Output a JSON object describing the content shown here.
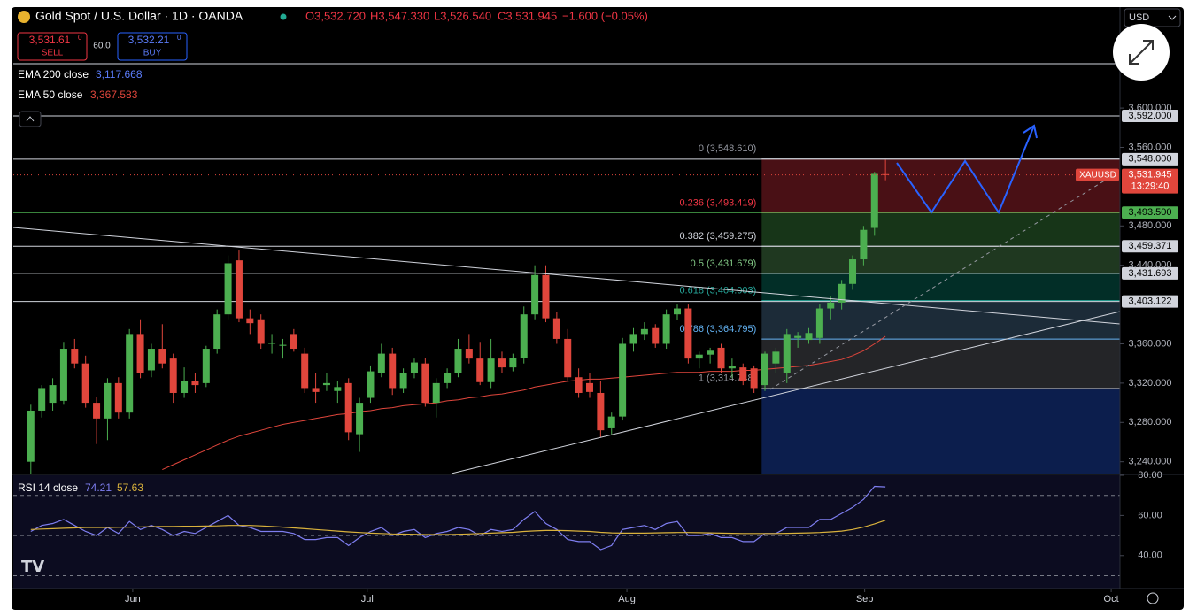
{
  "chart_data": {
    "type": "candlestick",
    "title": "Gold Spot / U.S. Dollar · 1D · OANDA",
    "header": {
      "open": "O3,532.720",
      "high": "H3,547.330",
      "low": "L3,526.540",
      "close": "C3,531.945",
      "change": "−1.600 (−0.05%)"
    },
    "trade": {
      "sell_price": "3,531.61",
      "sell_sup": "0",
      "sell": "SELL",
      "spread": "60.0",
      "buy_price": "3,532.21",
      "buy_sup": "0",
      "buy": "BUY"
    },
    "currency": "USD",
    "up_color": "#4caf50",
    "down_color": "#e0463c",
    "xlim": [
      -1.6,
      99.4
    ],
    "xticks": [
      {
        "value": 9.3,
        "label": "Jun"
      },
      {
        "value": 30.7,
        "label": "Jul"
      },
      {
        "value": 54.4,
        "label": "Aug"
      },
      {
        "value": 76.1,
        "label": "Sep"
      },
      {
        "value": 98.6,
        "label": "Oct"
      }
    ],
    "ylim": [
      3228,
      3701
    ],
    "yticks": [
      {
        "value": 3240,
        "label": "3,240.000"
      },
      {
        "value": 3280,
        "label": "3,280.000"
      },
      {
        "value": 3320,
        "label": "3,320.000"
      },
      {
        "value": 3360,
        "label": "3,360.000"
      },
      {
        "value": 3440,
        "label": "3,440.000"
      },
      {
        "value": 3480,
        "label": "3,480.000"
      },
      {
        "value": 3560,
        "label": "3,560.000"
      },
      {
        "value": 3600,
        "label": "3,600.000"
      }
    ],
    "ohlc": [
      [
        3240,
        3298,
        3228,
        3292
      ],
      [
        3292,
        3318,
        3285,
        3315
      ],
      [
        3300,
        3325,
        3292,
        3318
      ],
      [
        3302,
        3362,
        3298,
        3355
      ],
      [
        3355,
        3365,
        3335,
        3340
      ],
      [
        3340,
        3348,
        3295,
        3300
      ],
      [
        3300,
        3306,
        3258,
        3284
      ],
      [
        3284,
        3325,
        3262,
        3320
      ],
      [
        3320,
        3326,
        3284,
        3290
      ],
      [
        3290,
        3375,
        3284,
        3370
      ],
      [
        3370,
        3385,
        3325,
        3330
      ],
      [
        3333,
        3360,
        3326,
        3355
      ],
      [
        3355,
        3380,
        3335,
        3340
      ],
      [
        3345,
        3350,
        3300,
        3310
      ],
      [
        3310,
        3336,
        3305,
        3322
      ],
      [
        3322,
        3330,
        3310,
        3318
      ],
      [
        3320,
        3358,
        3316,
        3355
      ],
      [
        3355,
        3395,
        3350,
        3390
      ],
      [
        3390,
        3450,
        3385,
        3442
      ],
      [
        3445,
        3455,
        3382,
        3386
      ],
      [
        3386,
        3395,
        3370,
        3381
      ],
      [
        3385,
        3390,
        3355,
        3360
      ],
      [
        3360,
        3370,
        3350,
        3361
      ],
      [
        3358,
        3365,
        3345,
        3359
      ],
      [
        3370,
        3375,
        3352,
        3355
      ],
      [
        3350,
        3356,
        3310,
        3315
      ],
      [
        3315,
        3330,
        3300,
        3311
      ],
      [
        3318,
        3330,
        3312,
        3320
      ],
      [
        3312,
        3322,
        3300,
        3316
      ],
      [
        3320,
        3325,
        3262,
        3270
      ],
      [
        3268,
        3305,
        3250,
        3300
      ],
      [
        3305,
        3338,
        3300,
        3332
      ],
      [
        3330,
        3360,
        3326,
        3350
      ],
      [
        3350,
        3356,
        3308,
        3315
      ],
      [
        3315,
        3335,
        3310,
        3330
      ],
      [
        3330,
        3345,
        3325,
        3341
      ],
      [
        3340,
        3346,
        3296,
        3300
      ],
      [
        3300,
        3325,
        3285,
        3320
      ],
      [
        3320,
        3335,
        3315,
        3330
      ],
      [
        3330,
        3365,
        3326,
        3355
      ],
      [
        3355,
        3370,
        3340,
        3345
      ],
      [
        3345,
        3362,
        3318,
        3321
      ],
      [
        3321,
        3365,
        3315,
        3345
      ],
      [
        3345,
        3352,
        3330,
        3336
      ],
      [
        3336,
        3350,
        3332,
        3346
      ],
      [
        3346,
        3398,
        3340,
        3390
      ],
      [
        3390,
        3440,
        3385,
        3430
      ],
      [
        3430,
        3440,
        3382,
        3386
      ],
      [
        3386,
        3392,
        3360,
        3365
      ],
      [
        3365,
        3375,
        3322,
        3326
      ],
      [
        3326,
        3335,
        3305,
        3310
      ],
      [
        3320,
        3330,
        3305,
        3311
      ],
      [
        3310,
        3322,
        3265,
        3272
      ],
      [
        3274,
        3290,
        3268,
        3286
      ],
      [
        3286,
        3366,
        3282,
        3360
      ],
      [
        3360,
        3376,
        3352,
        3370
      ],
      [
        3370,
        3382,
        3364,
        3375
      ],
      [
        3376,
        3380,
        3356,
        3360
      ],
      [
        3360,
        3395,
        3355,
        3390
      ],
      [
        3390,
        3400,
        3384,
        3396
      ],
      [
        3396,
        3400,
        3340,
        3345
      ],
      [
        3345,
        3352,
        3335,
        3349
      ],
      [
        3349,
        3356,
        3340,
        3353
      ],
      [
        3356,
        3360,
        3330,
        3335
      ],
      [
        3335,
        3345,
        3325,
        3337
      ],
      [
        3336,
        3340,
        3318,
        3322
      ],
      [
        3335,
        3338,
        3310,
        3315
      ],
      [
        3318,
        3352,
        3312,
        3350
      ],
      [
        3340,
        3356,
        3330,
        3352
      ],
      [
        3330,
        3375,
        3320,
        3370
      ],
      [
        3366,
        3372,
        3356,
        3368
      ],
      [
        3364,
        3376,
        3360,
        3371
      ],
      [
        3366,
        3400,
        3360,
        3396
      ],
      [
        3396,
        3408,
        3385,
        3402
      ],
      [
        3402,
        3425,
        3395,
        3421
      ],
      [
        3421,
        3450,
        3415,
        3446
      ],
      [
        3446,
        3480,
        3440,
        3476
      ],
      [
        3478,
        3535,
        3470,
        3533
      ],
      [
        3532.72,
        3547.33,
        3526.54,
        3531.945
      ]
    ],
    "ema200": {
      "name": "EMA 200 close",
      "value_label": "3,117.668",
      "color": "#5b7cfa"
    },
    "ema50": {
      "name": "EMA 50 close",
      "value_label": "3,367.583",
      "color": "#e0463c",
      "values": [
        null,
        null,
        null,
        null,
        null,
        null,
        null,
        null,
        null,
        null,
        null,
        null,
        3232,
        3237,
        3242,
        3247,
        3252,
        3257,
        3262,
        3266,
        3269,
        3272,
        3275,
        3278,
        3280,
        3282,
        3284,
        3286,
        3288,
        3289,
        3291,
        3292,
        3294,
        3295,
        3297,
        3298,
        3299,
        3300,
        3302,
        3303,
        3305,
        3306,
        3308,
        3309,
        3311,
        3313,
        3316,
        3318,
        3320,
        3322,
        3323,
        3324,
        3324,
        3325,
        3326,
        3327,
        3328,
        3329,
        3330,
        3331,
        3331,
        3331,
        3332,
        3332,
        3332,
        3333,
        3333,
        3334,
        3335,
        3336,
        3337,
        3338,
        3340,
        3342,
        3344,
        3348,
        3353,
        3360,
        3367.583
      ]
    },
    "price_lines": [
      {
        "value": 3592,
        "label": "3,592.000",
        "color": "#d1d4dc"
      },
      {
        "value": 3548,
        "label": "3,548.000",
        "color": "#d1d4dc"
      },
      {
        "value": 3493.5,
        "label": "3,493.500",
        "color": "#4caf50"
      },
      {
        "value": 3459.371,
        "label": "3,459.371",
        "color": "#d1d4dc"
      },
      {
        "value": 3431.693,
        "label": "3,431.693",
        "color": "#d1d4dc"
      },
      {
        "value": 3403.122,
        "label": "3,403.122",
        "color": "#d1d4dc"
      }
    ],
    "last_price": {
      "symbol": "XAUUSD",
      "value": 3531.945,
      "label": "3,531.945",
      "countdown": "13:29:40",
      "color": "#e0463c"
    },
    "fib": {
      "x_start": 66.7,
      "levels": [
        {
          "value": 3548.61,
          "label": "0 (3,548.610)",
          "color": "#9598a1",
          "fill": "#f23645"
        },
        {
          "value": 3493.419,
          "label": "0.236 (3,493.419)",
          "color": "#f23645",
          "fill": "#4caf50"
        },
        {
          "value": 3459.275,
          "label": "0.382 (3,459.275)",
          "color": "#d1d4dc",
          "fill": "#66bb6a"
        },
        {
          "value": 3431.679,
          "label": "0.5 (3,431.679)",
          "color": "#81c784",
          "fill": "#089981"
        },
        {
          "value": 3404.003,
          "label": "0.618 (3,404.003)",
          "color": "#26a69a",
          "fill": "#5d8fb8"
        },
        {
          "value": 3364.795,
          "label": "0.786 (3,364.795)",
          "color": "#64b5f6",
          "fill": "#787b86"
        },
        {
          "value": 3314.748,
          "label": "1 (3,314.748)",
          "color": "#9598a1",
          "fill": "#2962ff"
        }
      ]
    },
    "rsi": {
      "type": "line",
      "title": "RSI 14 close",
      "ylim": [
        23.6,
        80
      ],
      "yticks": [
        {
          "value": 80,
          "label": "80.00"
        },
        {
          "value": 60,
          "label": "60.00"
        },
        {
          "value": 40,
          "label": "40.00"
        }
      ],
      "guides": [
        70,
        50,
        30
      ],
      "series": [
        {
          "value_label": "74.21",
          "color": "#7e7ef0",
          "values": [
            52,
            55,
            56,
            58,
            55,
            52,
            50,
            54,
            51,
            57,
            53,
            55,
            53,
            50,
            52,
            51,
            54,
            57,
            60,
            55,
            54,
            52,
            52,
            52,
            51,
            48,
            48,
            49,
            49,
            45,
            49,
            52,
            54,
            50,
            52,
            53,
            49,
            51,
            52,
            54,
            53,
            50,
            53,
            52,
            53,
            58,
            62,
            56,
            53,
            48,
            47,
            47,
            43,
            45,
            53,
            54,
            55,
            53,
            56,
            57,
            50,
            50,
            51,
            49,
            49,
            47,
            47,
            51,
            51,
            54,
            54,
            54,
            58,
            58,
            61,
            64,
            68,
            74.5,
            74.21
          ]
        },
        {
          "value_label": "57.63",
          "color": "#d9b23c",
          "values": [
            53,
            53.2,
            53.4,
            53.6,
            53.8,
            54,
            54,
            54,
            54.1,
            54.2,
            54.3,
            54.4,
            54.5,
            54.5,
            54.6,
            54.6,
            54.7,
            54.8,
            55,
            55,
            55,
            54.8,
            54.5,
            54.2,
            53.8,
            53.4,
            53,
            52.6,
            52.2,
            51.8,
            51.5,
            51.2,
            51,
            50.8,
            50.7,
            50.6,
            50.5,
            50.5,
            50.5,
            50.6,
            50.8,
            51,
            51.2,
            51.4,
            51.6,
            52,
            52.3,
            52.5,
            52.5,
            52.4,
            52.2,
            52,
            51.6,
            51.3,
            51.2,
            51.2,
            51.2,
            51.3,
            51.4,
            51.5,
            51.5,
            51.4,
            51.3,
            51.2,
            51.1,
            51,
            51,
            51,
            51,
            51.1,
            51.2,
            51.3,
            51.5,
            51.8,
            52.2,
            53,
            54.2,
            55.8,
            57.63
          ]
        }
      ]
    }
  }
}
